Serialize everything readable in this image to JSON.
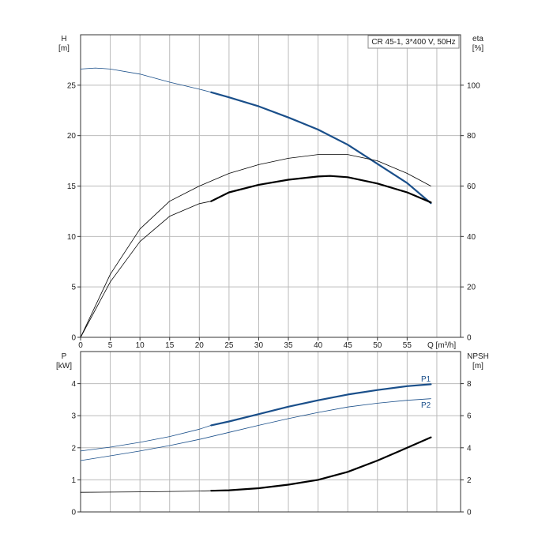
{
  "legend_text": "CR 45-1, 3*400 V, 50Hz",
  "colors": {
    "blue": "#1a4f8a",
    "black": "#000000",
    "grid": "#bbbbbb",
    "frame": "#333333"
  },
  "chart_data": [
    {
      "type": "line",
      "name": "top",
      "grid": true,
      "x_axis": {
        "label": "Q [m³/h]",
        "range": [
          0,
          64
        ],
        "ticks": [
          0,
          5,
          10,
          15,
          20,
          25,
          30,
          35,
          40,
          45,
          50,
          55
        ]
      },
      "y_left": {
        "label_line1": "H",
        "label_line2": "[m]",
        "range": [
          0,
          30
        ],
        "ticks": [
          0,
          5,
          10,
          15,
          20,
          25
        ]
      },
      "y_right": {
        "label_line1": "eta",
        "label_line2": "[%]",
        "range": [
          0,
          120
        ],
        "ticks": [
          0,
          20,
          40,
          60,
          80,
          100
        ]
      },
      "series": [
        {
          "key": "H",
          "axis": "left",
          "color": "blue",
          "bold_from": 22,
          "points": [
            [
              0,
              26.6
            ],
            [
              2.5,
              26.7
            ],
            [
              5,
              26.6
            ],
            [
              10,
              26.1
            ],
            [
              15,
              25.3
            ],
            [
              20,
              24.6
            ],
            [
              22,
              24.3
            ],
            [
              25,
              23.8
            ],
            [
              30,
              22.9
            ],
            [
              35,
              21.8
            ],
            [
              40,
              20.6
            ],
            [
              45,
              19.1
            ],
            [
              50,
              17.2
            ],
            [
              55,
              15.3
            ],
            [
              59,
              13.3
            ]
          ]
        },
        {
          "key": "eta_total",
          "axis": "right",
          "color": "black",
          "bold_from": 22,
          "points": [
            [
              0,
              0
            ],
            [
              5,
              22
            ],
            [
              10,
              38
            ],
            [
              15,
              48
            ],
            [
              20,
              53
            ],
            [
              22,
              54
            ],
            [
              25,
              57.5
            ],
            [
              30,
              60.5
            ],
            [
              35,
              62.5
            ],
            [
              40,
              63.8
            ],
            [
              42,
              64
            ],
            [
              45,
              63.5
            ],
            [
              50,
              61
            ],
            [
              55,
              57.5
            ],
            [
              59,
              53.5
            ]
          ]
        },
        {
          "key": "eta_pump",
          "axis": "right",
          "color": "black",
          "bold_from": 999,
          "points": [
            [
              0,
              0
            ],
            [
              5,
              25
            ],
            [
              10,
              43
            ],
            [
              15,
              54
            ],
            [
              20,
              60
            ],
            [
              25,
              65
            ],
            [
              30,
              68.5
            ],
            [
              35,
              71
            ],
            [
              40,
              72.5
            ],
            [
              45,
              72.5
            ],
            [
              50,
              70
            ],
            [
              55,
              65
            ],
            [
              59,
              60
            ]
          ]
        }
      ]
    },
    {
      "type": "line",
      "name": "bottom",
      "grid": true,
      "x_axis": {
        "label": "",
        "range": [
          0,
          64
        ],
        "ticks": []
      },
      "y_left": {
        "label_line1": "P",
        "label_line2": "[kW]",
        "range": [
          0,
          5
        ],
        "ticks": [
          0,
          1,
          2,
          3,
          4
        ]
      },
      "y_right": {
        "label_line1": "NPSH",
        "label_line2": "[m]",
        "range": [
          0,
          10
        ],
        "ticks": [
          0,
          2,
          4,
          6,
          8
        ]
      },
      "series": [
        {
          "key": "P1",
          "name": "P1",
          "axis": "left",
          "color": "blue",
          "bold_from": 22,
          "points": [
            [
              0,
              1.9
            ],
            [
              5,
              2.02
            ],
            [
              10,
              2.17
            ],
            [
              15,
              2.35
            ],
            [
              20,
              2.58
            ],
            [
              22,
              2.7
            ],
            [
              25,
              2.82
            ],
            [
              30,
              3.05
            ],
            [
              35,
              3.28
            ],
            [
              40,
              3.48
            ],
            [
              45,
              3.66
            ],
            [
              50,
              3.8
            ],
            [
              55,
              3.92
            ],
            [
              59,
              3.98
            ]
          ]
        },
        {
          "key": "P2",
          "name": "P2",
          "axis": "left",
          "color": "blue",
          "bold_from": 999,
          "points": [
            [
              0,
              1.6
            ],
            [
              5,
              1.75
            ],
            [
              10,
              1.9
            ],
            [
              15,
              2.07
            ],
            [
              20,
              2.26
            ],
            [
              25,
              2.48
            ],
            [
              30,
              2.7
            ],
            [
              35,
              2.91
            ],
            [
              40,
              3.1
            ],
            [
              45,
              3.27
            ],
            [
              50,
              3.39
            ],
            [
              55,
              3.48
            ],
            [
              59,
              3.53
            ]
          ]
        },
        {
          "key": "NPSH",
          "axis": "right",
          "color": "black",
          "bold_from": 22,
          "points": [
            [
              0,
              1.22
            ],
            [
              10,
              1.25
            ],
            [
              20,
              1.3
            ],
            [
              22,
              1.32
            ],
            [
              25,
              1.35
            ],
            [
              30,
              1.48
            ],
            [
              35,
              1.7
            ],
            [
              40,
              2.0
            ],
            [
              45,
              2.5
            ],
            [
              50,
              3.2
            ],
            [
              55,
              4.0
            ],
            [
              59,
              4.65
            ]
          ]
        }
      ]
    }
  ]
}
